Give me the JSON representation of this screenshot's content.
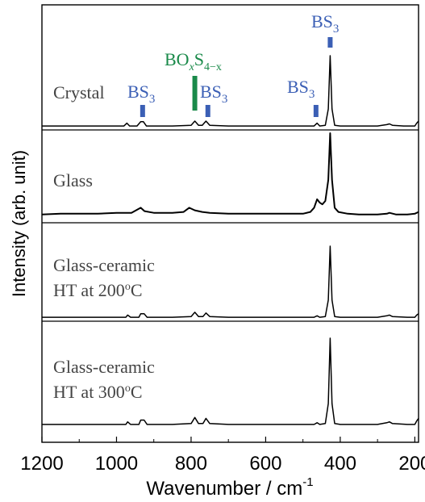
{
  "chart_data": {
    "type": "line",
    "xlabel": "Wavenumber / cm",
    "xlabel_superscript": "-1",
    "ylabel": "Intensity (arb. unit)",
    "xlim": [
      1200,
      190
    ],
    "x_ticks": [
      1200,
      1000,
      800,
      600,
      400,
      200
    ],
    "x_tick_labels": [
      "1200",
      "1000",
      "800",
      "600",
      "400",
      "200"
    ],
    "grid": false,
    "line_color": "#000000",
    "panels": [
      {
        "label_lines": [
          "Crystal"
        ],
        "label_sup": "",
        "points": [
          [
            1200,
            0.01
          ],
          [
            1150,
            0.01
          ],
          [
            1100,
            0.01
          ],
          [
            1050,
            0.01
          ],
          [
            1000,
            0.01
          ],
          [
            980,
            0.01
          ],
          [
            972,
            0.05
          ],
          [
            965,
            0.01
          ],
          [
            945,
            0.01
          ],
          [
            935,
            0.07
          ],
          [
            928,
            0.07
          ],
          [
            920,
            0.01
          ],
          [
            900,
            0.01
          ],
          [
            850,
            0.01
          ],
          [
            800,
            0.02
          ],
          [
            790,
            0.08
          ],
          [
            780,
            0.02
          ],
          [
            770,
            0.02
          ],
          [
            760,
            0.08
          ],
          [
            750,
            0.02
          ],
          [
            700,
            0.01
          ],
          [
            650,
            0.01
          ],
          [
            600,
            0.01
          ],
          [
            550,
            0.01
          ],
          [
            500,
            0.01
          ],
          [
            470,
            0.01
          ],
          [
            462,
            0.05
          ],
          [
            455,
            0.01
          ],
          [
            440,
            0.02
          ],
          [
            432,
            0.25
          ],
          [
            427,
            1.0
          ],
          [
            422,
            0.25
          ],
          [
            415,
            0.02
          ],
          [
            400,
            0.01
          ],
          [
            350,
            0.01
          ],
          [
            300,
            0.01
          ],
          [
            275,
            0.03
          ],
          [
            268,
            0.04
          ],
          [
            260,
            0.02
          ],
          [
            230,
            0.01
          ],
          [
            200,
            0.01
          ],
          [
            195,
            0.05
          ],
          [
            190,
            0.08
          ]
        ]
      },
      {
        "label_lines": [
          "Glass"
        ],
        "label_sup": "",
        "points": [
          [
            1200,
            0.04
          ],
          [
            1150,
            0.05
          ],
          [
            1100,
            0.05
          ],
          [
            1050,
            0.05
          ],
          [
            1000,
            0.06
          ],
          [
            960,
            0.06
          ],
          [
            935,
            0.12
          ],
          [
            925,
            0.08
          ],
          [
            900,
            0.06
          ],
          [
            850,
            0.06
          ],
          [
            820,
            0.07
          ],
          [
            805,
            0.12
          ],
          [
            790,
            0.09
          ],
          [
            770,
            0.07
          ],
          [
            750,
            0.06
          ],
          [
            700,
            0.05
          ],
          [
            650,
            0.05
          ],
          [
            600,
            0.05
          ],
          [
            550,
            0.05
          ],
          [
            500,
            0.05
          ],
          [
            480,
            0.07
          ],
          [
            470,
            0.12
          ],
          [
            462,
            0.22
          ],
          [
            455,
            0.18
          ],
          [
            448,
            0.16
          ],
          [
            440,
            0.2
          ],
          [
            432,
            0.45
          ],
          [
            427,
            1.0
          ],
          [
            422,
            0.45
          ],
          [
            415,
            0.12
          ],
          [
            405,
            0.07
          ],
          [
            380,
            0.05
          ],
          [
            350,
            0.04
          ],
          [
            300,
            0.04
          ],
          [
            275,
            0.05
          ],
          [
            268,
            0.06
          ],
          [
            250,
            0.04
          ],
          [
            220,
            0.04
          ],
          [
            200,
            0.05
          ],
          [
            190,
            0.07
          ]
        ]
      },
      {
        "label_lines": [
          "Glass-ceramic",
          "HT at 200"
        ],
        "label_sup": "o",
        "label_suffix": "C",
        "points": [
          [
            1200,
            0.01
          ],
          [
            1100,
            0.01
          ],
          [
            1000,
            0.01
          ],
          [
            975,
            0.01
          ],
          [
            970,
            0.04
          ],
          [
            962,
            0.01
          ],
          [
            940,
            0.01
          ],
          [
            935,
            0.06
          ],
          [
            926,
            0.06
          ],
          [
            918,
            0.01
          ],
          [
            900,
            0.01
          ],
          [
            850,
            0.01
          ],
          [
            800,
            0.02
          ],
          [
            790,
            0.08
          ],
          [
            780,
            0.02
          ],
          [
            768,
            0.02
          ],
          [
            760,
            0.07
          ],
          [
            750,
            0.02
          ],
          [
            700,
            0.01
          ],
          [
            600,
            0.01
          ],
          [
            500,
            0.01
          ],
          [
            470,
            0.01
          ],
          [
            462,
            0.03
          ],
          [
            455,
            0.01
          ],
          [
            440,
            0.02
          ],
          [
            432,
            0.25
          ],
          [
            427,
            1.0
          ],
          [
            422,
            0.25
          ],
          [
            415,
            0.02
          ],
          [
            400,
            0.01
          ],
          [
            300,
            0.01
          ],
          [
            275,
            0.03
          ],
          [
            268,
            0.04
          ],
          [
            260,
            0.02
          ],
          [
            220,
            0.01
          ],
          [
            200,
            0.01
          ],
          [
            195,
            0.04
          ],
          [
            190,
            0.06
          ]
        ]
      },
      {
        "label_lines": [
          "Glass-ceramic",
          "HT at 300"
        ],
        "label_sup": "o",
        "label_suffix": "C",
        "points": [
          [
            1200,
            0.01
          ],
          [
            1100,
            0.01
          ],
          [
            1000,
            0.01
          ],
          [
            975,
            0.01
          ],
          [
            970,
            0.04
          ],
          [
            962,
            0.01
          ],
          [
            940,
            0.01
          ],
          [
            935,
            0.06
          ],
          [
            926,
            0.06
          ],
          [
            918,
            0.01
          ],
          [
            900,
            0.01
          ],
          [
            850,
            0.01
          ],
          [
            800,
            0.02
          ],
          [
            790,
            0.09
          ],
          [
            780,
            0.02
          ],
          [
            768,
            0.02
          ],
          [
            760,
            0.08
          ],
          [
            750,
            0.02
          ],
          [
            700,
            0.01
          ],
          [
            600,
            0.01
          ],
          [
            500,
            0.01
          ],
          [
            470,
            0.01
          ],
          [
            462,
            0.03
          ],
          [
            455,
            0.01
          ],
          [
            440,
            0.02
          ],
          [
            432,
            0.25
          ],
          [
            427,
            1.0
          ],
          [
            422,
            0.25
          ],
          [
            415,
            0.02
          ],
          [
            400,
            0.01
          ],
          [
            300,
            0.01
          ],
          [
            275,
            0.03
          ],
          [
            268,
            0.04
          ],
          [
            260,
            0.02
          ],
          [
            220,
            0.01
          ],
          [
            200,
            0.01
          ],
          [
            195,
            0.05
          ],
          [
            190,
            0.08
          ]
        ]
      }
    ],
    "annotations": [
      {
        "main": "BS",
        "sub": "3",
        "x": 930,
        "color": "#3b5fb5"
      },
      {
        "main": "BO",
        "sub_x": "x",
        "main2": "S",
        "sub2": "4−x",
        "x": 790,
        "color": "#1a8a4a",
        "tall_marker": true
      },
      {
        "main": "BS",
        "sub": "3",
        "x": 755,
        "color": "#3b5fb5"
      },
      {
        "main": "BS",
        "sub": "3",
        "x": 465,
        "color": "#3b5fb5"
      },
      {
        "main": "BS",
        "sub": "3",
        "x": 427,
        "color": "#3b5fb5"
      }
    ]
  }
}
